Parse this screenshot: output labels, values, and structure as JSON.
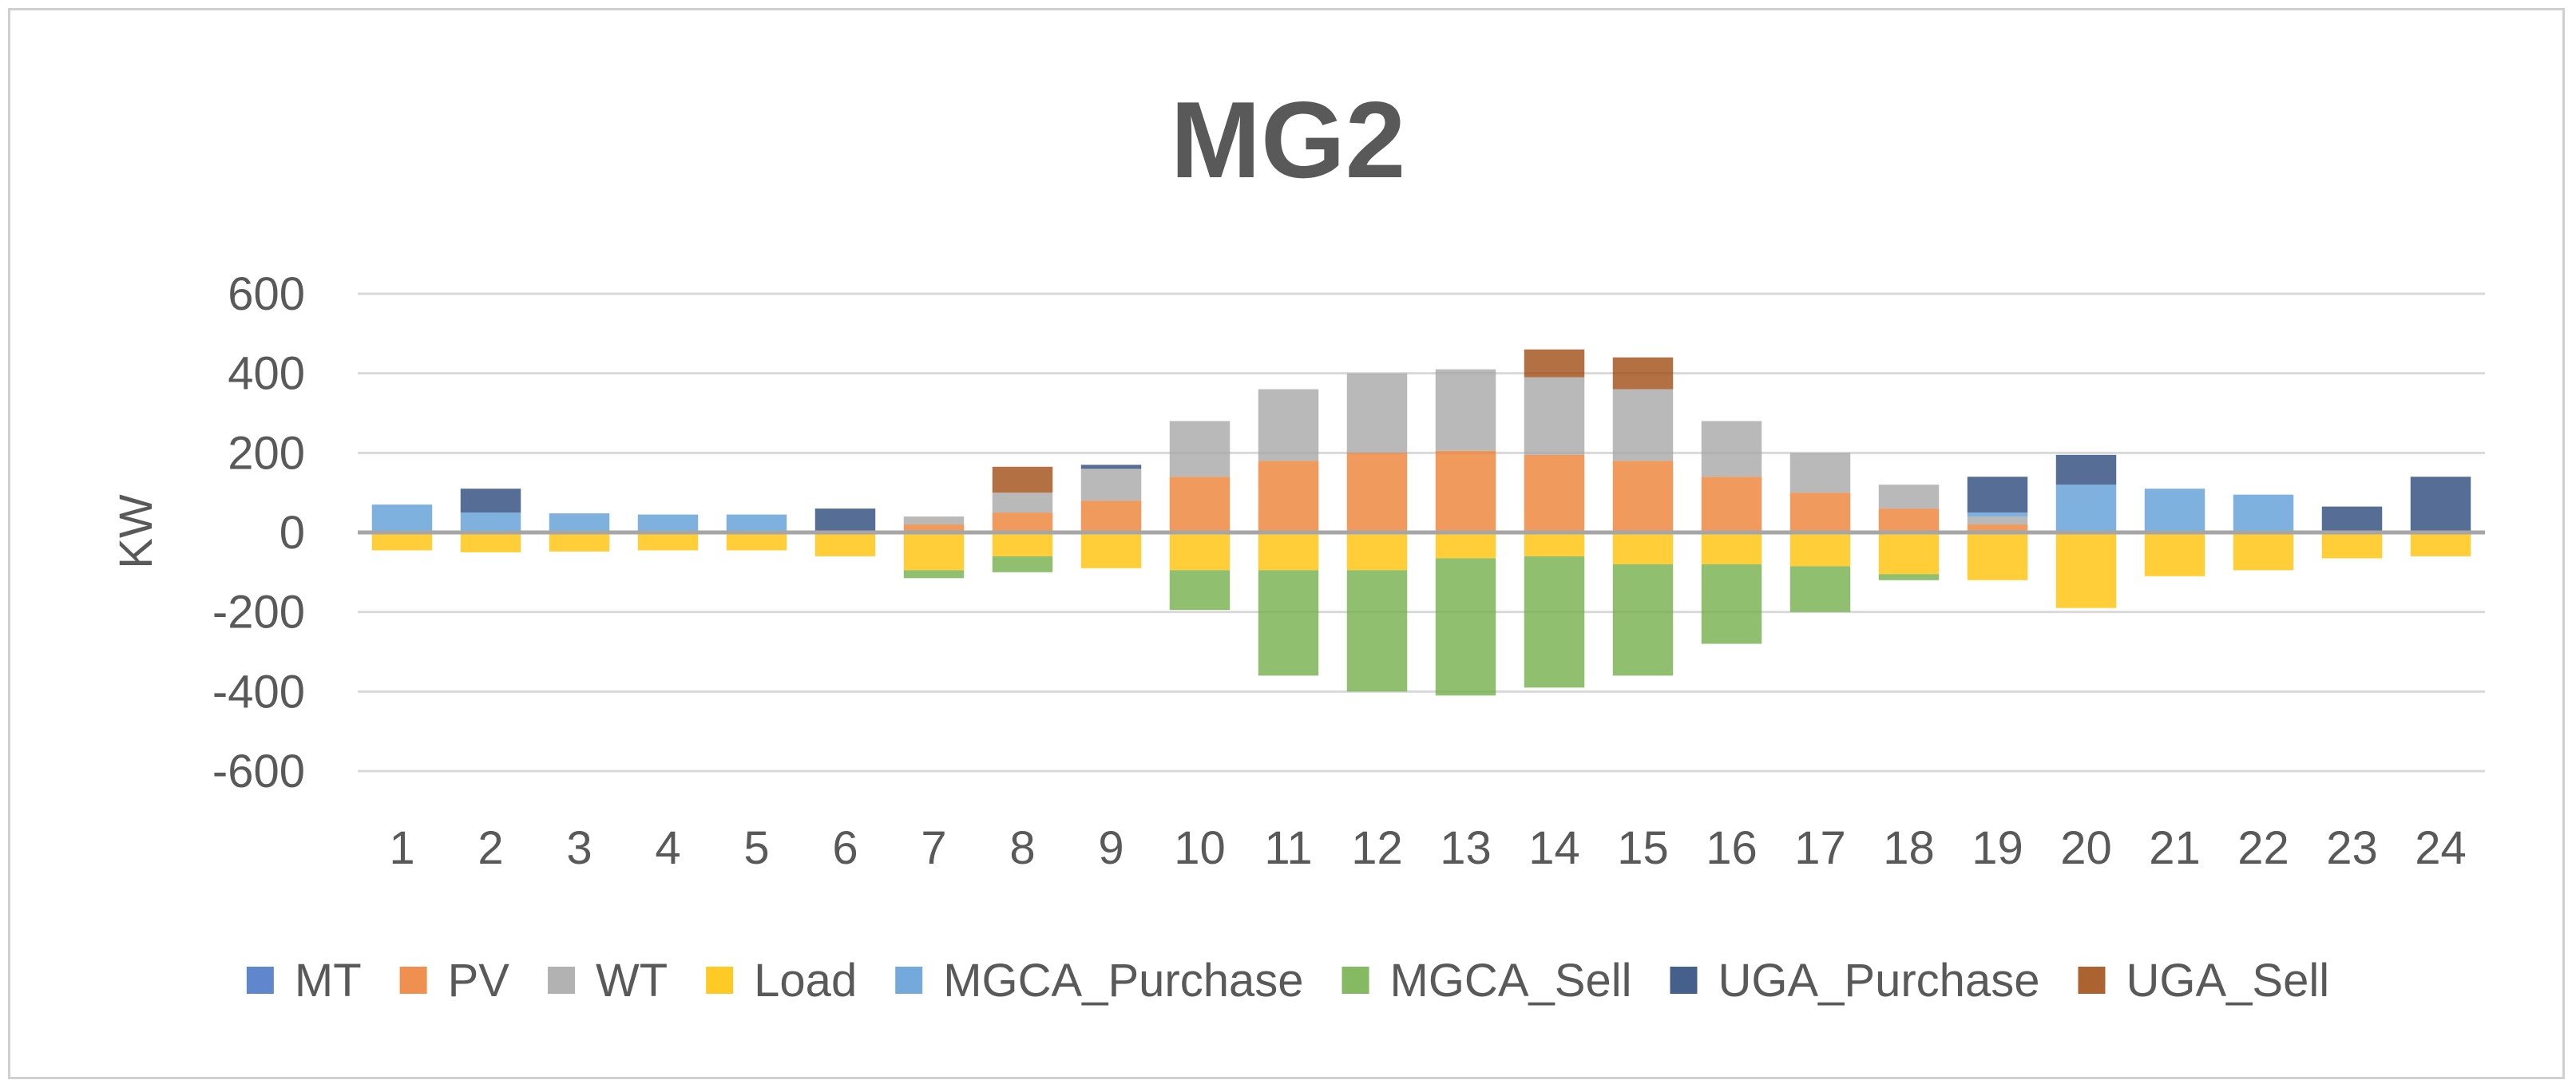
{
  "chart_data": {
    "type": "bar",
    "stacked": true,
    "title": "MG2",
    "xlabel": "",
    "ylabel": "KW",
    "ylim": [
      -600,
      600
    ],
    "yticks": [
      600,
      400,
      200,
      0,
      -200,
      -400,
      -600
    ],
    "categories": [
      "1",
      "2",
      "3",
      "4",
      "5",
      "6",
      "7",
      "8",
      "9",
      "10",
      "11",
      "12",
      "13",
      "14",
      "15",
      "16",
      "17",
      "18",
      "19",
      "20",
      "21",
      "22",
      "23",
      "24"
    ],
    "legend_position": "bottom",
    "grid": true,
    "series": [
      {
        "name": "MT",
        "color": "#4472C4",
        "values": [
          0,
          0,
          0,
          0,
          0,
          0,
          0,
          0,
          0,
          0,
          0,
          0,
          0,
          0,
          0,
          0,
          0,
          0,
          0,
          0,
          0,
          0,
          0,
          0
        ]
      },
      {
        "name": "PV",
        "color": "#ED7D31",
        "values": [
          0,
          0,
          0,
          0,
          0,
          0,
          20,
          50,
          80,
          140,
          180,
          200,
          205,
          195,
          180,
          140,
          100,
          60,
          20,
          0,
          0,
          0,
          0,
          0
        ]
      },
      {
        "name": "WT",
        "color": "#A5A5A5",
        "values": [
          0,
          0,
          0,
          0,
          0,
          0,
          20,
          50,
          80,
          140,
          180,
          200,
          205,
          195,
          180,
          140,
          100,
          60,
          20,
          0,
          0,
          0,
          0,
          0
        ]
      },
      {
        "name": "Load",
        "color": "#FFC000",
        "values": [
          -45,
          -50,
          -48,
          -45,
          -45,
          -60,
          -95,
          -60,
          -90,
          -95,
          -95,
          -95,
          -65,
          -60,
          -80,
          -80,
          -85,
          -105,
          -120,
          -190,
          -110,
          -95,
          -65,
          -60
        ]
      },
      {
        "name": "MGCA_Purchase",
        "color": "#5B9BD5",
        "values": [
          70,
          50,
          48,
          45,
          45,
          0,
          0,
          0,
          0,
          0,
          0,
          0,
          0,
          0,
          0,
          0,
          0,
          0,
          10,
          120,
          110,
          95,
          0,
          0
        ]
      },
      {
        "name": "MGCA_Sell",
        "color": "#70AD47",
        "values": [
          0,
          0,
          0,
          0,
          0,
          0,
          -20,
          -40,
          0,
          -100,
          -265,
          -305,
          -345,
          -330,
          -280,
          -200,
          -115,
          -15,
          0,
          0,
          0,
          0,
          0,
          0
        ]
      },
      {
        "name": "UGA_Purchase",
        "color": "#264478",
        "values": [
          0,
          60,
          0,
          0,
          0,
          60,
          0,
          0,
          10,
          0,
          0,
          0,
          0,
          0,
          0,
          0,
          0,
          0,
          90,
          75,
          0,
          0,
          65,
          140
        ]
      },
      {
        "name": "UGA_Sell",
        "color": "#9E480E",
        "values": [
          0,
          0,
          0,
          0,
          0,
          0,
          0,
          65,
          0,
          0,
          0,
          0,
          0,
          70,
          80,
          0,
          0,
          0,
          0,
          0,
          0,
          0,
          0,
          0
        ]
      }
    ]
  }
}
